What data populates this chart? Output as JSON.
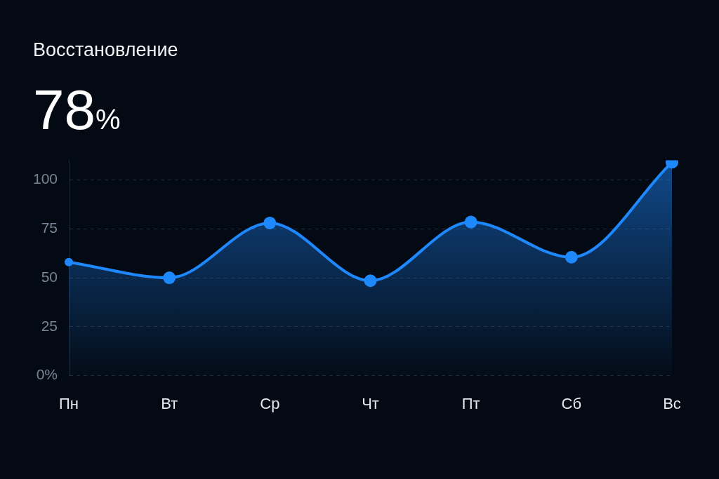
{
  "chart_data": {
    "type": "area",
    "title": "Восстановление",
    "subtitle": "78%",
    "categories": [
      "Пн",
      "Вт",
      "Ср",
      "Чт",
      "Пт",
      "Сб",
      "Вс"
    ],
    "series": [
      {
        "color": "#1e88ff",
        "values": [
          58,
          50,
          78,
          48.5,
          78.5,
          60.5,
          109
        ]
      }
    ],
    "ylim": [
      0,
      110
    ],
    "yticks": [
      {
        "value": 0,
        "label": "0%"
      },
      25,
      50,
      75,
      100
    ],
    "grid": "y",
    "marker": "circle",
    "legend": false
  }
}
